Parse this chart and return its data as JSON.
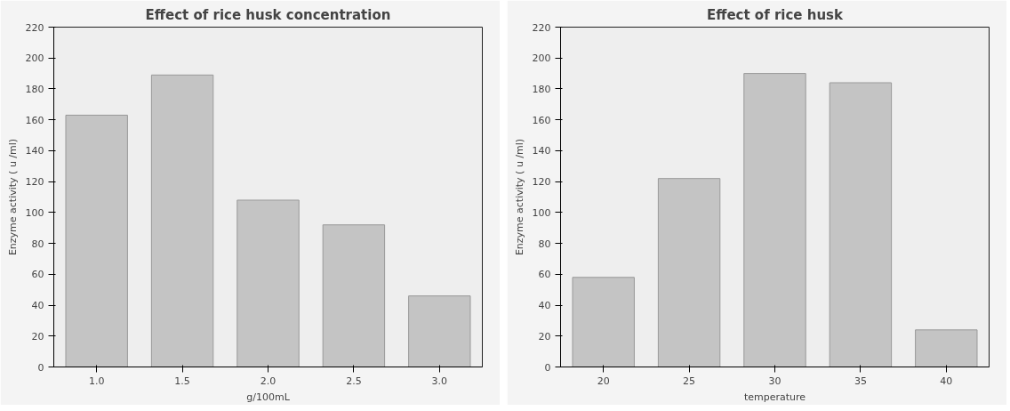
{
  "chart_data": [
    {
      "type": "bar",
      "title": "Effect of rice husk concentration",
      "xlabel": "g/100mL",
      "ylabel": "Enzyme activity ( u /ml)",
      "categories": [
        "1.0",
        "1.5",
        "2.0",
        "2.5",
        "3.0"
      ],
      "values": [
        163,
        189,
        108,
        92,
        46
      ],
      "color": "#c4c4c4",
      "ylim": [
        0,
        220
      ],
      "yticks": [
        0,
        20,
        40,
        60,
        80,
        100,
        120,
        140,
        160,
        180,
        200,
        220
      ],
      "grid": false
    },
    {
      "type": "bar",
      "title": "Effect of rice husk",
      "xlabel": "temperature",
      "ylabel": "Enzyme activity ( u /ml)",
      "categories": [
        "20",
        "25",
        "30",
        "35",
        "40"
      ],
      "values": [
        58,
        122,
        190,
        184,
        24
      ],
      "color": "#c4c4c4",
      "ylim": [
        0,
        220
      ],
      "yticks": [
        0,
        20,
        40,
        60,
        80,
        100,
        120,
        140,
        160,
        180,
        200,
        220
      ],
      "grid": false
    }
  ]
}
